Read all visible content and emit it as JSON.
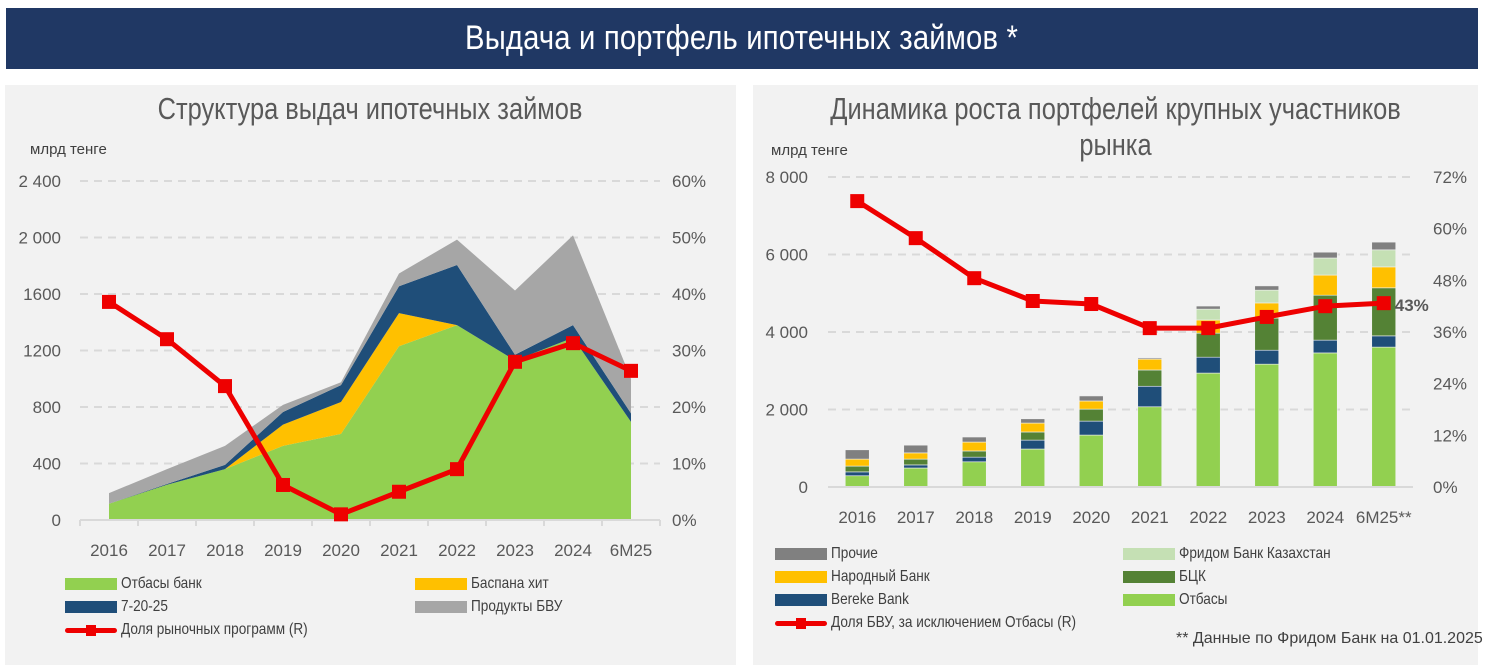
{
  "header": {
    "title": "Выдача и портфель ипотечных займов *"
  },
  "chart_data": [
    {
      "id": "left",
      "type": "area",
      "title": "Структура выдач ипотечных займов",
      "ylabel": "млрд тенге",
      "y2label": "",
      "categories": [
        "2016",
        "2017",
        "2018",
        "2019",
        "2020",
        "2021",
        "2022",
        "2023",
        "2024",
        "6M25"
      ],
      "ylim": [
        0,
        2400
      ],
      "yticks": [
        0,
        400,
        800,
        1200,
        1600,
        2000,
        2400
      ],
      "ytick_labels": [
        "0",
        "400",
        "800",
        "1200",
        "1600",
        "2 000",
        "2 400"
      ],
      "y2lim": [
        0,
        60
      ],
      "y2ticks": [
        0,
        10,
        20,
        30,
        40,
        50,
        60
      ],
      "y2tick_labels": [
        "0%",
        "10%",
        "20%",
        "30%",
        "40%",
        "50%",
        "60%"
      ],
      "grid": true,
      "stacked": true,
      "series": [
        {
          "name": "Отбасы банк",
          "color": "#92d050",
          "values": [
            115,
            250,
            360,
            525,
            610,
            1230,
            1380,
            1130,
            1290,
            695
          ]
        },
        {
          "name": "Баспана хит",
          "color": "#ffc000",
          "values": [
            0,
            0,
            0,
            150,
            225,
            235,
            0,
            0,
            0,
            0
          ]
        },
        {
          "name": "7-20-25",
          "color": "#1f4e79",
          "values": [
            0,
            5,
            30,
            90,
            120,
            190,
            425,
            40,
            90,
            60
          ]
        },
        {
          "name": "Продукты БВУ",
          "color": "#a6a6a6",
          "values": [
            75,
            105,
            135,
            50,
            20,
            90,
            180,
            455,
            635,
            245
          ]
        }
      ],
      "line_series": {
        "name": "Доля рыночных программ (R)",
        "color": "#ee0000",
        "axis": "right",
        "values": [
          38.6,
          32.0,
          23.7,
          6.2,
          1.0,
          5.0,
          9.0,
          28.0,
          31.3,
          26.4
        ]
      },
      "legend": [
        {
          "label": "Отбасы банк",
          "type": "area",
          "color": "#92d050"
        },
        {
          "label": "Баспана хит",
          "type": "area",
          "color": "#ffc000"
        },
        {
          "label": "7-20-25",
          "type": "area",
          "color": "#1f4e79"
        },
        {
          "label": "Продукты БВУ",
          "type": "area",
          "color": "#a6a6a6"
        },
        {
          "label": "Доля рыночных программ (R)",
          "type": "line",
          "color": "#ee0000"
        }
      ],
      "legend_position": "bottom"
    },
    {
      "id": "right",
      "type": "bar",
      "title": "Динамика роста портфелей крупных участников рынка",
      "ylabel": "млрд тенге",
      "categories": [
        "2016",
        "2017",
        "2018",
        "2019",
        "2020",
        "2021",
        "2022",
        "2023",
        "2024",
        "6M25**"
      ],
      "ylim": [
        0,
        8000
      ],
      "yticks": [
        0,
        2000,
        4000,
        6000,
        8000
      ],
      "ytick_labels": [
        "0",
        "2 000",
        "4 000",
        "6 000",
        "8 000"
      ],
      "y2lim": [
        0,
        72
      ],
      "y2ticks": [
        0,
        12,
        24,
        36,
        48,
        60,
        72
      ],
      "y2tick_labels": [
        "0%",
        "12%",
        "24%",
        "36%",
        "48%",
        "60%",
        "72%"
      ],
      "grid": true,
      "stacked": true,
      "series": [
        {
          "name": "Отбасы",
          "color": "#92d050",
          "values": [
            290,
            490,
            650,
            980,
            1340,
            2070,
            2940,
            3170,
            3460,
            3610
          ]
        },
        {
          "name": "Bereke Bank",
          "color": "#1f4e79",
          "values": [
            100,
            80,
            120,
            230,
            360,
            530,
            410,
            360,
            330,
            290
          ]
        },
        {
          "name": "БЦК",
          "color": "#548235",
          "values": [
            150,
            150,
            160,
            210,
            310,
            420,
            620,
            830,
            1160,
            1240
          ]
        },
        {
          "name": "Народный Банк",
          "color": "#ffc000",
          "values": [
            180,
            160,
            230,
            230,
            210,
            280,
            340,
            390,
            520,
            540
          ]
        },
        {
          "name": "Фридом Банк Казахстан",
          "color": "#c5e0b4",
          "values": [
            0,
            0,
            0,
            0,
            0,
            0,
            280,
            330,
            440,
            440
          ]
        },
        {
          "name": "Прочие",
          "color": "#808080",
          "values": [
            240,
            200,
            130,
            110,
            130,
            30,
            80,
            110,
            150,
            200
          ]
        }
      ],
      "line_series": {
        "name": "Доля  БВУ, за исключением Отбасы (R)",
        "color": "#ee0000",
        "axis": "right",
        "values": [
          66.4,
          57.8,
          48.5,
          43.2,
          42.5,
          36.9,
          36.9,
          39.5,
          42.0,
          42.7
        ]
      },
      "annotations": [
        {
          "text": "43%",
          "category": "6M25**",
          "series": "line"
        }
      ],
      "legend": [
        {
          "label": "Прочие",
          "type": "bar",
          "color": "#808080"
        },
        {
          "label": "Фридом Банк Казахстан",
          "type": "bar",
          "color": "#c5e0b4"
        },
        {
          "label": "Народный Банк",
          "type": "bar",
          "color": "#ffc000"
        },
        {
          "label": "БЦК",
          "type": "bar",
          "color": "#548235"
        },
        {
          "label": "Bereke Bank",
          "type": "bar",
          "color": "#1f4e79"
        },
        {
          "label": "Отбасы",
          "type": "bar",
          "color": "#92d050"
        },
        {
          "label": "Доля  БВУ, за исключением Отбасы (R)",
          "type": "line",
          "color": "#ee0000"
        }
      ],
      "footnote": "** Данные по Фридом Банк на 01.01.2025",
      "legend_position": "bottom"
    }
  ]
}
